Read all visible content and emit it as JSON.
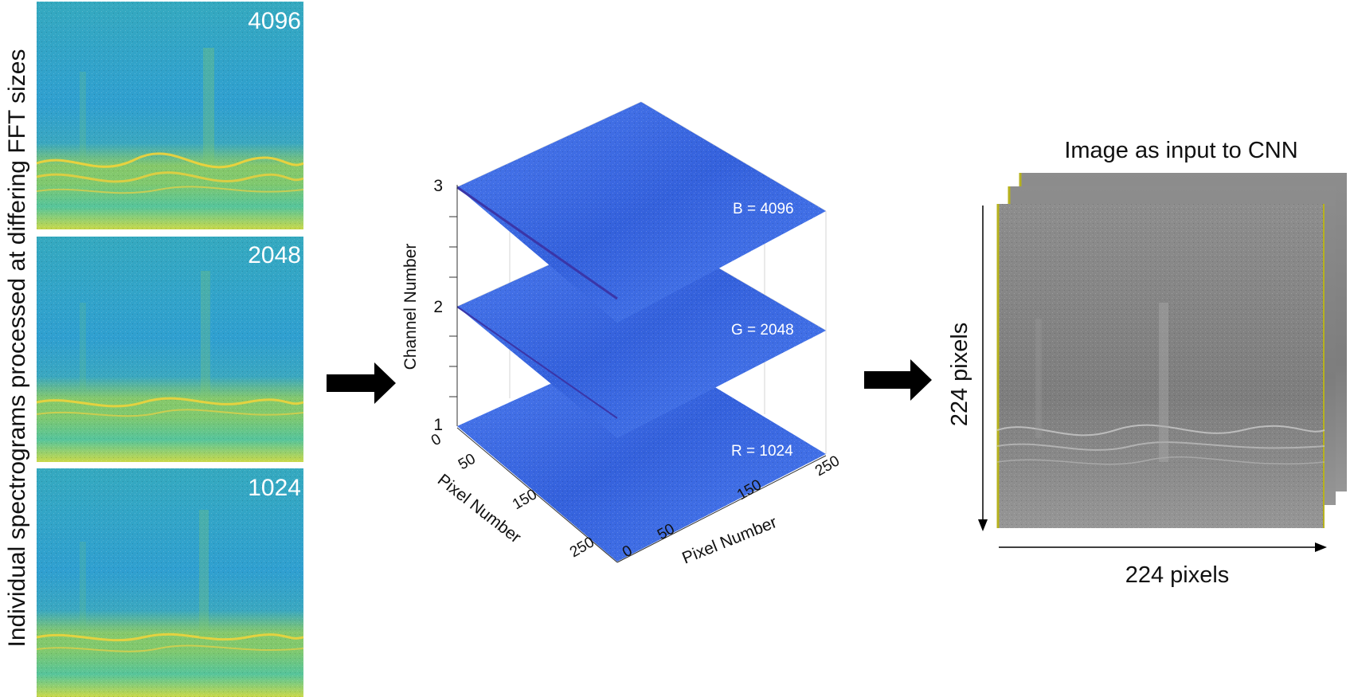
{
  "left_panel": {
    "vertical_caption": "Individual spectrograms processed at differing FFT sizes",
    "spectrograms": [
      {
        "fft_label": "4096"
      },
      {
        "fft_label": "2048"
      },
      {
        "fft_label": "1024"
      }
    ]
  },
  "middle_panel": {
    "z_axis_label": "Channel Number",
    "z_ticks": [
      "1",
      "2",
      "3"
    ],
    "x_axis_label": "Pixel Number",
    "x_ticks": [
      "0",
      "50",
      "150",
      "250"
    ],
    "y_axis_label": "Pixel Number",
    "y_ticks": [
      "0",
      "50",
      "150",
      "250"
    ],
    "layers": [
      {
        "channel_label": "B = 4096"
      },
      {
        "channel_label": "G = 2048"
      },
      {
        "channel_label": "R = 1024"
      }
    ]
  },
  "right_panel": {
    "title": "Image as input to CNN",
    "height_label": "224 pixels",
    "width_label": "224 pixels"
  },
  "colors": {
    "spectrogram_bg": "#2aa8c4",
    "spectrogram_band": "#f5d53a",
    "layer_blue": "#3a66e0",
    "cnn_gray": "#8a8a8a",
    "arrow": "#000000"
  }
}
